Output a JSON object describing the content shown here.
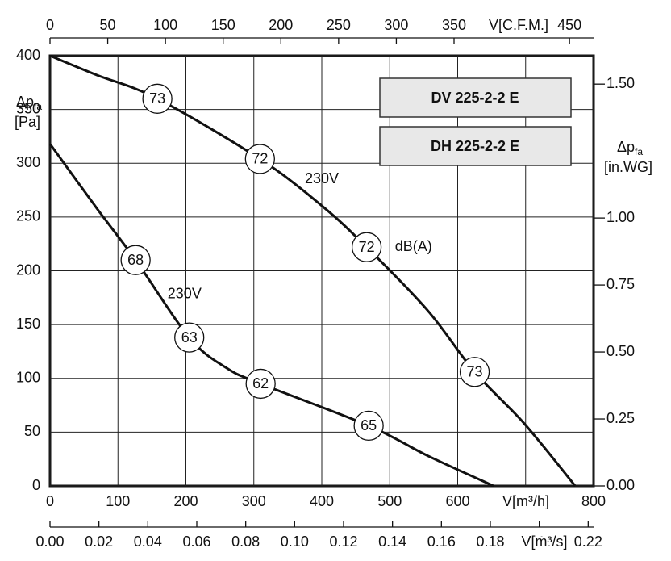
{
  "chart_data": {
    "type": "line",
    "xlabel": "V[m³/h]",
    "xlim": [
      0,
      800
    ],
    "xticks": [
      0,
      100,
      200,
      300,
      400,
      500,
      600,
      700,
      800
    ],
    "ylabel": {
      "text": "Δp",
      "sub": "fa",
      "unit": "[Pa]"
    },
    "ylim": [
      0,
      400
    ],
    "yticks": [
      0,
      50,
      100,
      150,
      200,
      250,
      300,
      350,
      400
    ],
    "y2label": {
      "text": "Δp",
      "sub": "fa",
      "unit": "[in.WG]"
    },
    "y2lim": [
      0,
      1.606
    ],
    "y2ticks": [
      {
        "value": 0,
        "label": "0.00"
      },
      {
        "value": 0.25,
        "label": "0.25"
      },
      {
        "value": 0.5,
        "label": "0.50"
      },
      {
        "value": 0.75,
        "label": "0.75"
      },
      {
        "value": 1,
        "label": "1.00"
      },
      {
        "value": 1.5,
        "label": "1.50"
      }
    ],
    "x_top_label": "V[C.F.M.]",
    "x_top_lim": [
      0,
      470.86
    ],
    "x_top_ticks": [
      0,
      50,
      100,
      150,
      200,
      250,
      300,
      350,
      450
    ],
    "x_bottom_label": "V[m³/s]",
    "x_bottom_lim": [
      0,
      0.2222
    ],
    "x_bottom_ticks": [
      {
        "value": 0,
        "label": "0.00"
      },
      {
        "value": 0.02,
        "label": "0.02"
      },
      {
        "value": 0.04,
        "label": "0.04"
      },
      {
        "value": 0.06,
        "label": "0.06"
      },
      {
        "value": 0.08,
        "label": "0.08"
      },
      {
        "value": 0.1,
        "label": "0.10"
      },
      {
        "value": 0.12,
        "label": "0.12"
      },
      {
        "value": 0.14,
        "label": "0.14"
      },
      {
        "value": 0.16,
        "label": "0.16"
      },
      {
        "value": 0.18,
        "label": "0.18"
      },
      {
        "value": 0.2,
        "label": "0.20"
      },
      {
        "value": 0.22,
        "label": "0.22"
      }
    ],
    "grid": true,
    "series": [
      {
        "color": "#111111",
        "x": [
          0,
          69,
          158,
          309,
          401,
          466,
          556,
          625,
          698,
          773
        ],
        "values": [
          400,
          382,
          360,
          304,
          260,
          222,
          163,
          106,
          58,
          0
        ],
        "db_labels": [
          {
            "x": 158,
            "y": 360,
            "value": 73
          },
          {
            "x": 309,
            "y": 304,
            "value": 72
          },
          {
            "x": 466,
            "y": 222,
            "value": 72
          },
          {
            "x": 625,
            "y": 106,
            "value": 73
          }
        ]
      },
      {
        "color": "#111111",
        "x": [
          0,
          69,
          126,
          205,
          259,
          310,
          469,
          556,
          653
        ],
        "values": [
          318,
          258,
          210,
          138,
          110,
          95,
          56,
          28,
          0
        ],
        "db_labels": [
          {
            "x": 126,
            "y": 210,
            "value": 68
          },
          {
            "x": 205,
            "y": 138,
            "value": 63
          },
          {
            "x": 310,
            "y": 95,
            "value": 62
          },
          {
            "x": 469,
            "y": 56,
            "value": 65
          }
        ]
      }
    ],
    "annotations": [
      {
        "text": "230V",
        "x": 400,
        "y": 285
      },
      {
        "text": "dB(A)",
        "x": 535,
        "y": 222
      },
      {
        "text": "230V",
        "x": 198,
        "y": 178
      }
    ],
    "models": [
      "DV 225-2-2 E",
      "DH 225-2-2 E"
    ]
  }
}
